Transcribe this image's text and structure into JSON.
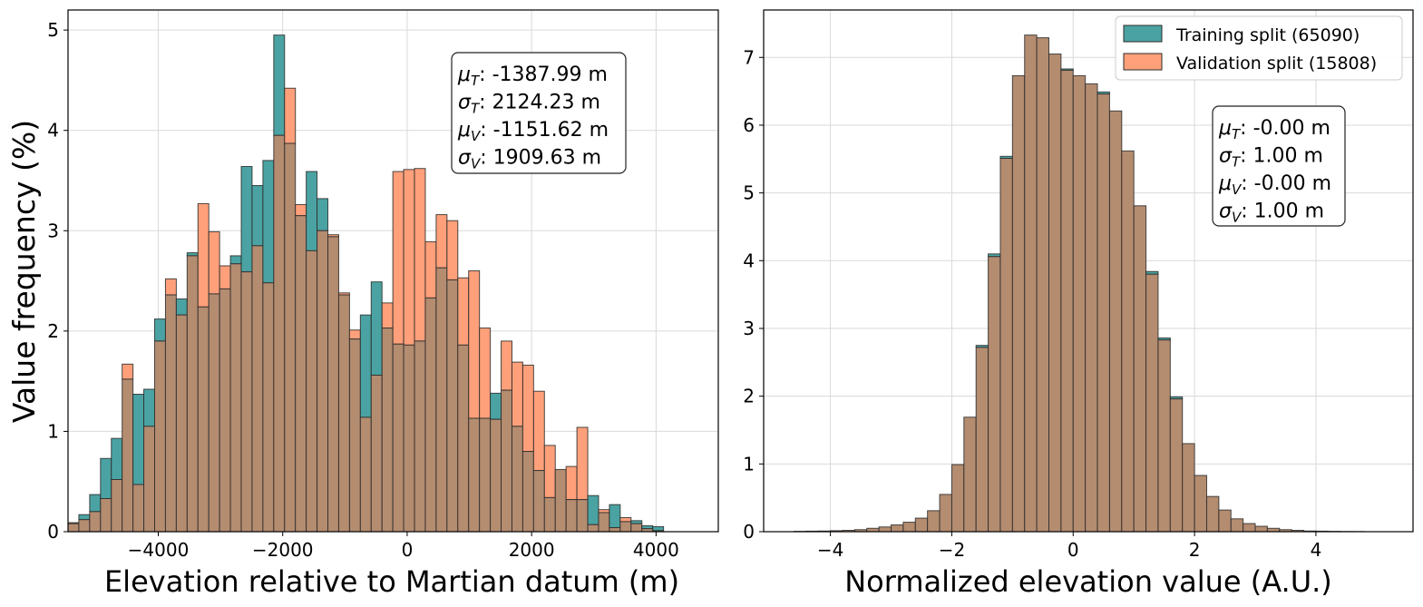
{
  "colors": {
    "training": "#4aa3a2",
    "validation": "#ffa07a",
    "overlap": "#b48c70",
    "edge": "#2b2b2b"
  },
  "legend": {
    "training_label": "Training split (65090)",
    "validation_label": "Validation split (15808)"
  },
  "chart_data": [
    {
      "type": "bar",
      "title": "",
      "xlabel": "Elevation relative to Martian datum (m)",
      "ylabel": "Value frequency (%)",
      "xlim": [
        -5450,
        5000
      ],
      "ylim": [
        0,
        5.2
      ],
      "xticks": [
        -4000,
        -2000,
        0,
        2000,
        4000
      ],
      "xtick_labels": [
        "−4000",
        "−2000",
        "0",
        "2000",
        "4000"
      ],
      "yticks": [
        0,
        1,
        2,
        3,
        4,
        5
      ],
      "ytick_labels": [
        "0",
        "1",
        "2",
        "3",
        "4",
        "5"
      ],
      "bin_start": -5450,
      "bin_width": 174,
      "series": [
        {
          "name": "Training split (65090)",
          "values": [
            0.08,
            0.17,
            0.37,
            0.73,
            0.93,
            1.52,
            1.37,
            1.42,
            2.12,
            2.36,
            2.32,
            2.78,
            2.24,
            2.37,
            2.42,
            2.75,
            3.64,
            3.45,
            3.7,
            4.95,
            3.87,
            3.15,
            3.59,
            3.32,
            2.94,
            2.36,
            1.92,
            2.16,
            2.49,
            2.03,
            1.87,
            1.86,
            1.9,
            2.33,
            2.63,
            2.51,
            1.86,
            1.13,
            1.13,
            1.38,
            1.41,
            1.05,
            0.8,
            0.61,
            0.34,
            0.62,
            0.32,
            0.32,
            0.36,
            0.19,
            0.27,
            0.1,
            0.11,
            0.06,
            0.05
          ]
        },
        {
          "name": "Validation split (15808)",
          "values": [
            0.09,
            0.12,
            0.2,
            0.33,
            0.52,
            1.67,
            0.47,
            1.05,
            1.9,
            2.52,
            2.16,
            2.75,
            3.27,
            2.99,
            2.65,
            2.67,
            2.59,
            2.85,
            2.48,
            3.95,
            4.42,
            3.26,
            2.8,
            3.0,
            2.96,
            2.38,
            2.01,
            1.14,
            1.56,
            2.28,
            3.59,
            3.61,
            3.62,
            2.89,
            3.16,
            3.1,
            2.53,
            2.6,
            2.03,
            1.12,
            1.9,
            1.69,
            1.66,
            1.4,
            0.86,
            0.62,
            0.65,
            1.04,
            0.07,
            0.22,
            0.04,
            0.14,
            0.08,
            0.03,
            0.01
          ]
        }
      ],
      "stats": [
        {
          "sym": "μ",
          "sub": "T",
          "rest": ": -1387.99 m"
        },
        {
          "sym": "σ",
          "sub": "T",
          "rest": ": 2124.23 m"
        },
        {
          "sym": "μ",
          "sub": "V",
          "rest": ": -1151.62 m"
        },
        {
          "sym": "σ",
          "sub": "V",
          "rest": ": 1909.63 m"
        }
      ]
    },
    {
      "type": "bar",
      "title": "",
      "xlabel": "Normalized elevation value (A.U.)",
      "ylabel": "",
      "xlim": [
        -5.1,
        5.6
      ],
      "ylim": [
        0,
        7.7
      ],
      "xticks": [
        -4,
        -2,
        0,
        2,
        4
      ],
      "xtick_labels": [
        "−4",
        "−2",
        "0",
        "2",
        "4"
      ],
      "yticks": [
        0,
        1,
        2,
        3,
        4,
        5,
        6,
        7
      ],
      "ytick_labels": [
        "0",
        "1",
        "2",
        "3",
        "4",
        "5",
        "6",
        "7"
      ],
      "bin_start": -4.6,
      "bin_width": 0.2,
      "series": [
        {
          "name": "Training split (65090)",
          "values": [
            0.005,
            0.008,
            0.01,
            0.015,
            0.02,
            0.03,
            0.05,
            0.07,
            0.1,
            0.14,
            0.2,
            0.31,
            0.55,
            0.99,
            1.69,
            2.75,
            4.1,
            5.54,
            6.73,
            7.33,
            7.29,
            7.05,
            6.83,
            6.73,
            6.61,
            6.49,
            6.21,
            5.62,
            4.81,
            3.84,
            2.86,
            1.99,
            1.3,
            0.83,
            0.52,
            0.32,
            0.19,
            0.12,
            0.08,
            0.05,
            0.03,
            0.02,
            0.01,
            0.008,
            0.005,
            0.003,
            0.002
          ]
        },
        {
          "name": "Validation split (15808)",
          "values": [
            0.005,
            0.008,
            0.01,
            0.015,
            0.02,
            0.03,
            0.05,
            0.07,
            0.1,
            0.14,
            0.2,
            0.31,
            0.55,
            0.99,
            1.69,
            2.72,
            4.06,
            5.51,
            6.73,
            7.33,
            7.29,
            7.05,
            6.81,
            6.73,
            6.61,
            6.46,
            6.21,
            5.62,
            4.81,
            3.8,
            2.83,
            1.96,
            1.3,
            0.83,
            0.52,
            0.32,
            0.19,
            0.12,
            0.08,
            0.05,
            0.03,
            0.02,
            0.01,
            0.008,
            0.005,
            0.003,
            0.002
          ]
        }
      ],
      "stats": [
        {
          "sym": "μ",
          "sub": "T",
          "rest": ": -0.00 m"
        },
        {
          "sym": "σ",
          "sub": "T",
          "rest": ": 1.00 m"
        },
        {
          "sym": "μ",
          "sub": "V",
          "rest": ": -0.00 m"
        },
        {
          "sym": "σ",
          "sub": "V",
          "rest": ": 1.00 m"
        }
      ]
    }
  ]
}
